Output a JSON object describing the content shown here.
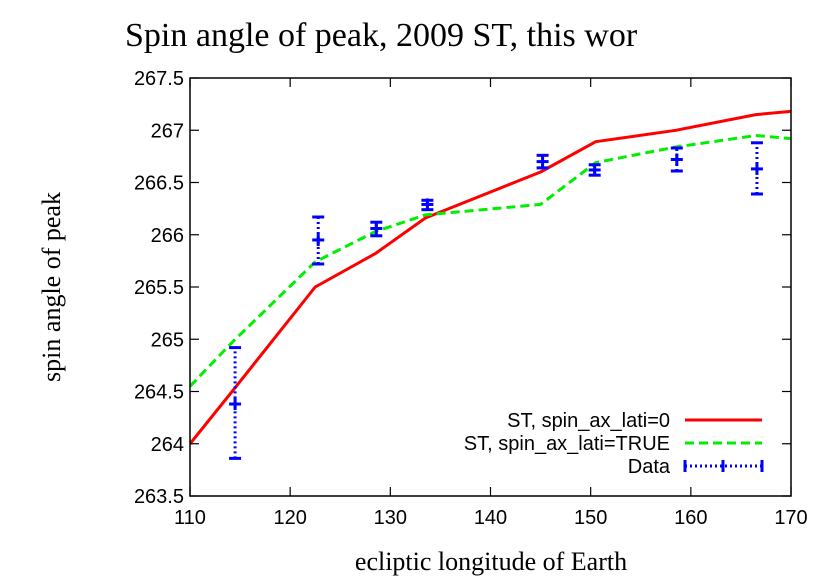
{
  "chart_data": {
    "type": "line",
    "title": "Spin angle of peak, 2009 ST, this wor",
    "xlabel": "ecliptic longitude of Earth",
    "ylabel": "spin angle of peak",
    "xlim": [
      110,
      170
    ],
    "ylim": [
      263.5,
      267.5
    ],
    "xticks": [
      110,
      120,
      130,
      140,
      150,
      160,
      170
    ],
    "yticks": [
      263.5,
      264,
      264.5,
      265,
      265.5,
      266,
      266.5,
      267,
      267.5
    ],
    "grid": false,
    "legend_position": "bottom-right",
    "series": [
      {
        "name": "ST, spin_ax_lati=0",
        "kind": "line",
        "color": "#ff0000",
        "dash": "solid",
        "x": [
          110,
          114.2,
          122.5,
          128.5,
          133.5,
          145,
          150.5,
          158.5,
          166.5,
          170
        ],
        "y": [
          264.0,
          264.5,
          265.5,
          265.82,
          266.16,
          266.6,
          266.89,
          267.0,
          267.15,
          267.18
        ]
      },
      {
        "name": "ST, spin_ax_lati=TRUE",
        "kind": "line",
        "color": "#00ee00",
        "dash": "dashed",
        "x": [
          110,
          114.2,
          122.5,
          128.5,
          133.5,
          145,
          150.5,
          158.5,
          166.5,
          170
        ],
        "y": [
          264.55,
          264.97,
          265.74,
          266.03,
          266.19,
          266.29,
          266.69,
          266.84,
          266.95,
          266.92
        ]
      },
      {
        "name": "Data",
        "kind": "errorbar",
        "color": "#0000ff",
        "dash": "dotted",
        "x": [
          114.5,
          122.8,
          128.6,
          133.7,
          145.2,
          150.4,
          158.6,
          166.6
        ],
        "y": [
          264.38,
          265.95,
          266.06,
          266.29,
          266.7,
          266.62,
          266.72,
          266.63
        ],
        "err_low": [
          263.86,
          265.72,
          265.99,
          266.24,
          266.64,
          266.57,
          266.61,
          266.39
        ],
        "err_high": [
          264.92,
          266.17,
          266.12,
          266.33,
          266.76,
          266.67,
          266.83,
          266.88
        ]
      }
    ]
  }
}
